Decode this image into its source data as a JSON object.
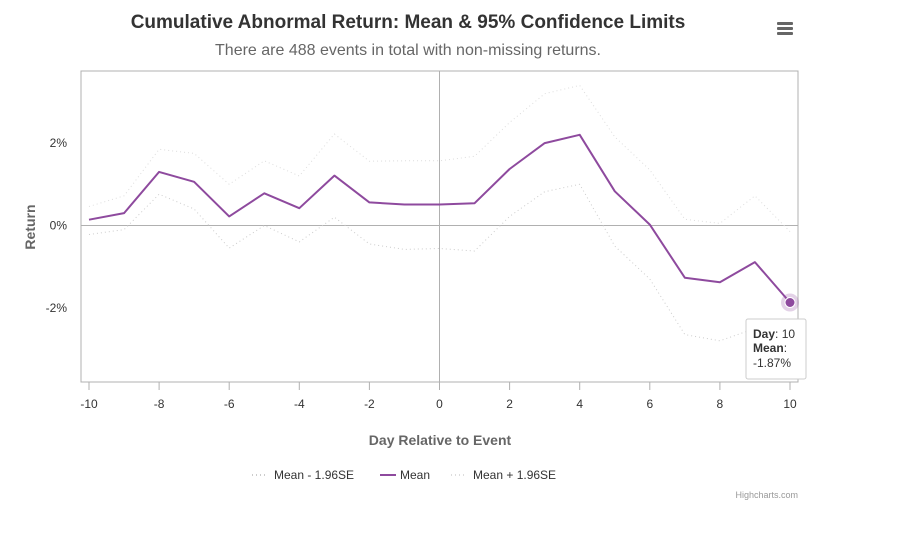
{
  "chart_data": {
    "type": "line",
    "title": "Cumulative Abnormal Return: Mean & 95% Confidence Limits",
    "subtitle": "There are 488 events in total with non-missing returns.",
    "xlabel": "Day Relative to Event",
    "ylabel": "Return",
    "x": [
      -10,
      -9,
      -8,
      -7,
      -6,
      -5,
      -4,
      -3,
      -2,
      -1,
      0,
      1,
      2,
      3,
      4,
      5,
      6,
      7,
      8,
      9,
      10
    ],
    "x_ticks": [
      "-10",
      "-8",
      "-6",
      "-4",
      "-2",
      "0",
      "2",
      "4",
      "6",
      "8",
      "10"
    ],
    "y_ticks": [
      "2%",
      "0%",
      "-2%"
    ],
    "y_tick_values": [
      2,
      0,
      -2
    ],
    "xlim": [
      -10,
      10
    ],
    "ylim": [
      -3.8,
      3.75
    ],
    "series": [
      {
        "name": "Mean - 1.96SE",
        "style": "dotted",
        "color": "#cccccc",
        "values": [
          -0.22,
          -0.1,
          0.76,
          0.4,
          -0.55,
          0.0,
          -0.4,
          0.2,
          -0.45,
          -0.58,
          -0.56,
          -0.62,
          0.22,
          0.82,
          1.0,
          -0.5,
          -1.3,
          -2.65,
          -2.8,
          -2.5,
          -2.35
        ]
      },
      {
        "name": "Mean",
        "style": "solid",
        "color": "#8e4a9e",
        "values": [
          0.14,
          0.3,
          1.3,
          1.06,
          0.22,
          0.78,
          0.42,
          1.21,
          0.56,
          0.51,
          0.51,
          0.54,
          1.37,
          2.0,
          2.2,
          0.83,
          0.02,
          -1.27,
          -1.38,
          -0.89,
          -1.87
        ]
      },
      {
        "name": "Mean + 1.96SE",
        "style": "dotted",
        "color": "#dddddd",
        "values": [
          0.46,
          0.72,
          1.85,
          1.75,
          1.0,
          1.57,
          1.2,
          2.22,
          1.56,
          1.57,
          1.57,
          1.68,
          2.5,
          3.2,
          3.4,
          2.15,
          1.35,
          0.15,
          0.05,
          0.72,
          -0.15
        ]
      }
    ],
    "legend": {
      "position": "bottom-center"
    },
    "grid": false,
    "tooltip": {
      "day_label": "Day",
      "day_value": "10",
      "mean_label": "Mean",
      "mean_value": "-1.87%"
    },
    "credits": "Highcharts.com",
    "menu_icon": "hamburger-menu-icon"
  }
}
